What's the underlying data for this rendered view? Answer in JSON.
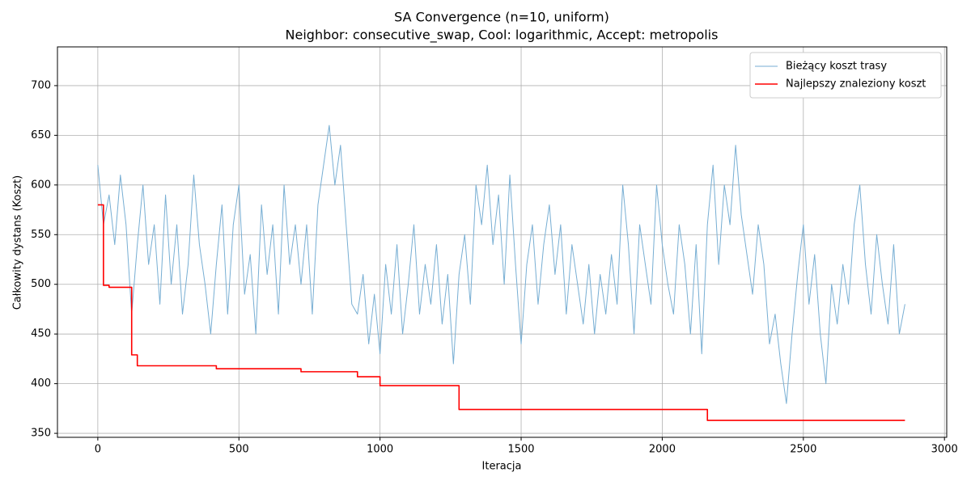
{
  "chart_data": {
    "type": "line",
    "title": "SA Convergence (n=10, uniform)",
    "subtitle": "Neighbor: consecutive_swap, Cool: logarithmic, Accept: metropolis",
    "x_label": "Iteracja",
    "y_label": "Całkowity dystans (Koszt)",
    "x": [
      0,
      20,
      40,
      60,
      80,
      100,
      120,
      140,
      160,
      180,
      200,
      220,
      240,
      260,
      280,
      300,
      320,
      340,
      360,
      380,
      400,
      420,
      440,
      460,
      480,
      500,
      520,
      540,
      560,
      580,
      600,
      620,
      640,
      660,
      680,
      700,
      720,
      740,
      760,
      780,
      800,
      820,
      840,
      860,
      880,
      900,
      920,
      940,
      960,
      980,
      1000,
      1020,
      1040,
      1060,
      1080,
      1100,
      1120,
      1140,
      1160,
      1180,
      1200,
      1220,
      1240,
      1260,
      1280,
      1300,
      1320,
      1340,
      1360,
      1380,
      1400,
      1420,
      1440,
      1460,
      1480,
      1500,
      1520,
      1540,
      1560,
      1580,
      1600,
      1620,
      1640,
      1660,
      1680,
      1700,
      1720,
      1740,
      1760,
      1780,
      1800,
      1820,
      1840,
      1860,
      1880,
      1900,
      1920,
      1940,
      1960,
      1980,
      2000,
      2020,
      2040,
      2060,
      2080,
      2100,
      2120,
      2140,
      2160,
      2180,
      2200,
      2220,
      2240,
      2260,
      2280,
      2300,
      2320,
      2340,
      2360,
      2380,
      2400,
      2420,
      2440,
      2460,
      2480,
      2500,
      2520,
      2540,
      2560,
      2580,
      2600,
      2620,
      2640,
      2660,
      2680,
      2700,
      2720,
      2740,
      2760,
      2780,
      2800,
      2820,
      2840,
      2860
    ],
    "series": [
      {
        "name": "Bieżący koszt trasy",
        "color": "#77aed3",
        "width": 1,
        "drawstyle": "default",
        "values": [
          620,
          560,
          590,
          540,
          610,
          560,
          470,
          540,
          600,
          520,
          560,
          480,
          590,
          500,
          560,
          470,
          520,
          610,
          540,
          500,
          450,
          520,
          580,
          470,
          560,
          600,
          490,
          530,
          450,
          580,
          510,
          560,
          470,
          600,
          520,
          560,
          500,
          560,
          470,
          580,
          620,
          660,
          600,
          640,
          560,
          480,
          470,
          510,
          440,
          490,
          430,
          520,
          470,
          540,
          450,
          500,
          560,
          470,
          520,
          480,
          540,
          460,
          510,
          420,
          510,
          550,
          480,
          600,
          560,
          620,
          540,
          590,
          500,
          610,
          520,
          440,
          520,
          560,
          480,
          540,
          580,
          510,
          560,
          470,
          540,
          500,
          460,
          520,
          450,
          510,
          470,
          530,
          480,
          600,
          540,
          450,
          560,
          520,
          480,
          600,
          540,
          500,
          470,
          560,
          520,
          450,
          540,
          430,
          560,
          620,
          520,
          600,
          560,
          640,
          570,
          530,
          490,
          560,
          520,
          440,
          470,
          420,
          380,
          450,
          510,
          560,
          480,
          530,
          450,
          400,
          500,
          460,
          520,
          480,
          560,
          600,
          520,
          470,
          550,
          500,
          460,
          540,
          450,
          480
        ]
      },
      {
        "name": "Najlepszy znaleziony koszt",
        "color": "#ff0000",
        "width": 1.6,
        "drawstyle": "steps-post",
        "values": [
          580,
          499,
          497,
          497,
          497,
          497,
          429,
          418,
          418,
          418,
          418,
          418,
          418,
          418,
          418,
          418,
          418,
          418,
          418,
          418,
          418,
          415,
          415,
          415,
          415,
          415,
          415,
          415,
          415,
          415,
          415,
          415,
          415,
          415,
          415,
          415,
          412,
          412,
          412,
          412,
          412,
          412,
          412,
          412,
          412,
          412,
          407,
          407,
          407,
          407,
          398,
          398,
          398,
          398,
          398,
          398,
          398,
          398,
          398,
          398,
          398,
          398,
          398,
          398,
          374,
          374,
          374,
          374,
          374,
          374,
          374,
          374,
          374,
          374,
          374,
          374,
          374,
          374,
          374,
          374,
          374,
          374,
          374,
          374,
          374,
          374,
          374,
          374,
          374,
          374,
          374,
          374,
          374,
          374,
          374,
          374,
          374,
          374,
          374,
          374,
          374,
          374,
          374,
          374,
          374,
          374,
          374,
          374,
          363,
          363,
          363,
          363,
          363,
          363,
          363,
          363,
          363,
          363,
          363,
          363,
          363,
          363,
          363,
          363,
          363,
          363,
          363,
          363,
          363,
          363,
          363,
          363,
          363,
          363,
          363,
          363,
          363,
          363,
          363,
          363,
          363,
          363,
          363,
          363
        ]
      }
    ],
    "xlim": [
      -143,
      3008
    ],
    "ylim": [
      346,
      739
    ],
    "xticks": [
      0,
      500,
      1000,
      1500,
      2000,
      2500,
      3000
    ],
    "yticks": [
      350,
      400,
      450,
      500,
      550,
      600,
      650,
      700
    ],
    "grid": true,
    "legend": "upper right"
  }
}
